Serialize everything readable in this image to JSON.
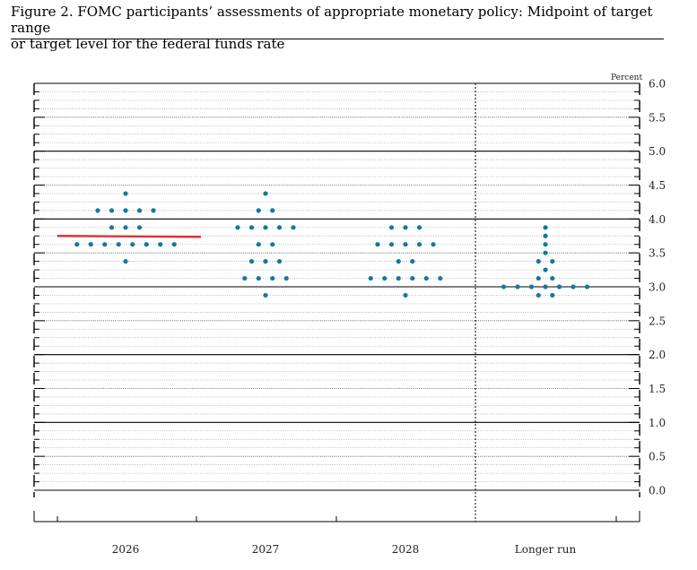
{
  "title_line1": "Figure 2. FOMC participants’ assessments of appropriate monetary policy: Midpoint of target range",
  "title_line2": "or target level for the federal funds rate",
  "chart_data": {
    "type": "scatter",
    "subtype": "dot-plot",
    "title": "Figure 2. FOMC participants’ assessments of appropriate monetary policy: Midpoint of target range or target level for the federal funds rate",
    "unit_label": "Percent",
    "categories": [
      "2026",
      "2027",
      "2028",
      "Longer run"
    ],
    "ylim": [
      0.0,
      6.0
    ],
    "y_ticks": [
      0.0,
      0.5,
      1.0,
      1.5,
      2.0,
      2.5,
      3.0,
      3.5,
      4.0,
      4.5,
      5.0,
      5.5,
      6.0
    ],
    "y_tick_labels": [
      "0.0",
      "0.5",
      "1.0",
      "1.5",
      "2.0",
      "2.5",
      "3.0",
      "3.5",
      "4.0",
      "4.5",
      "5.0",
      "5.5",
      "6.0"
    ],
    "grid": true,
    "dot_color": "#1478a0",
    "median_line_color": "#e03030",
    "current_rate": {
      "value": 3.75,
      "spans": [
        "2026"
      ]
    },
    "series": [
      {
        "category": "2026",
        "dots": [
          {
            "y": 4.375,
            "count": 1
          },
          {
            "y": 4.125,
            "count": 5
          },
          {
            "y": 3.875,
            "count": 3
          },
          {
            "y": 3.625,
            "count": 8
          },
          {
            "y": 3.375,
            "count": 1
          }
        ]
      },
      {
        "category": "2027",
        "dots": [
          {
            "y": 4.375,
            "count": 1
          },
          {
            "y": 4.125,
            "count": 2
          },
          {
            "y": 3.875,
            "count": 5
          },
          {
            "y": 3.625,
            "count": 2
          },
          {
            "y": 3.375,
            "count": 3
          },
          {
            "y": 3.125,
            "count": 4
          },
          {
            "y": 2.875,
            "count": 1
          }
        ]
      },
      {
        "category": "2028",
        "dots": [
          {
            "y": 3.875,
            "count": 3
          },
          {
            "y": 3.625,
            "count": 5
          },
          {
            "y": 3.375,
            "count": 2
          },
          {
            "y": 3.125,
            "count": 6
          },
          {
            "y": 2.875,
            "count": 1
          }
        ]
      },
      {
        "category": "Longer run",
        "dots": [
          {
            "y": 3.875,
            "count": 1
          },
          {
            "y": 3.75,
            "count": 1
          },
          {
            "y": 3.625,
            "count": 1
          },
          {
            "y": 3.5,
            "count": 1
          },
          {
            "y": 3.375,
            "count": 2
          },
          {
            "y": 3.25,
            "count": 1
          },
          {
            "y": 3.125,
            "count": 2
          },
          {
            "y": 3.0,
            "count": 7
          },
          {
            "y": 2.875,
            "count": 2
          }
        ]
      }
    ]
  }
}
